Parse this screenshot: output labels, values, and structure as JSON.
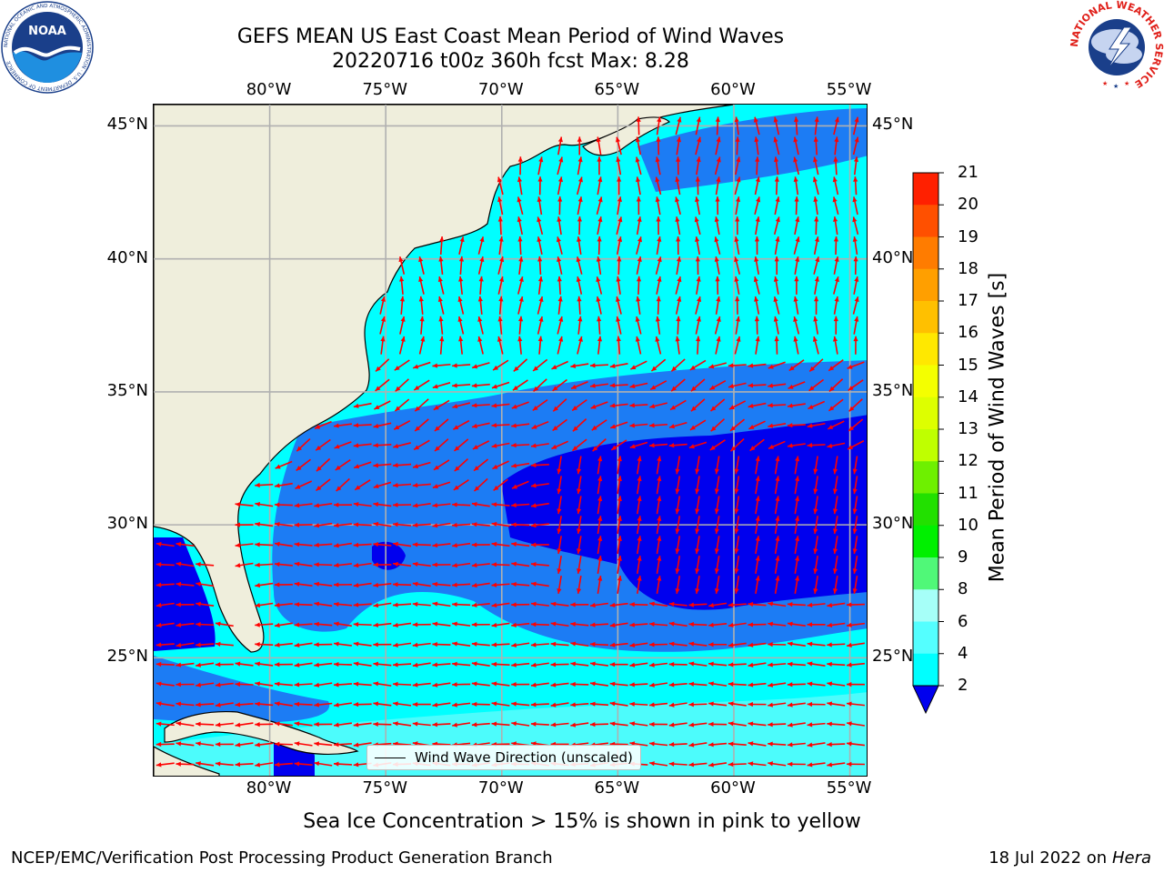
{
  "title": {
    "line1": "GEFS MEAN US East Coast Mean Period of Wind Waves",
    "line2": "20220716 t00z 360h fcst   Max: 8.28"
  },
  "map": {
    "extent": {
      "lon_min": -85,
      "lon_max": -54.2,
      "lat_min": 20.5,
      "lat_max": 45.8
    },
    "land_color": "#efeedc",
    "coastline_color": "#000000",
    "grid_color": "#b0b0b0",
    "arrow_color": "#ff0000",
    "lon_ticks": [
      {
        "value": -80,
        "label": "80°W"
      },
      {
        "value": -75,
        "label": "75°W"
      },
      {
        "value": -70,
        "label": "70°W"
      },
      {
        "value": -65,
        "label": "65°W"
      },
      {
        "value": -60,
        "label": "60°W"
      },
      {
        "value": -55,
        "label": "55°W"
      }
    ],
    "lat_ticks": [
      {
        "value": 45,
        "label": "45°N"
      },
      {
        "value": 40,
        "label": "40°N"
      },
      {
        "value": 35,
        "label": "35°N"
      },
      {
        "value": 30,
        "label": "30°N"
      },
      {
        "value": 25,
        "label": "25°N"
      }
    ],
    "legend": "Wind Wave Direction (unscaled)"
  },
  "colorbar": {
    "label": "Mean Period of Wind Waves [s]",
    "under_color": "#0000ee",
    "levels": [
      "21",
      "20",
      "19",
      "18",
      "17",
      "16",
      "15",
      "14",
      "13",
      "12",
      "11",
      "10",
      "9",
      "8",
      "6",
      "4",
      "2"
    ],
    "colors": [
      "#ff0000",
      "#ff2000",
      "#ff5000",
      "#ff7c00",
      "#ff9f00",
      "#ffc000",
      "#ffe800",
      "#f4ff00",
      "#ddff00",
      "#bfff00",
      "#6ef000",
      "#22e000",
      "#00f000",
      "#50f878",
      "#a6fff8",
      "#54ffff",
      "#00ffff",
      "#0080ff"
    ]
  },
  "fields": {
    "lt2_color": "#0000ee",
    "2to4_color": "#1c7cf4",
    "4to6_color": "#00ffff",
    "6to8_color": "#4cfcfc"
  },
  "subtitle": "Sea Ice Concentration > 15% is shown in pink to yellow",
  "footer_left": "NCEP/EMC/Verification Post Processing Product Generation Branch",
  "footer_right_date": "18 Jul 2022 on ",
  "footer_right_host": "Hera",
  "logos": {
    "noaa": {
      "text": "NOAA",
      "ring": "NATIONAL OCEANIC AND ATMOSPHERIC ADMINISTRATION · U.S. DEPARTMENT OF COMMERCE"
    },
    "nws": {
      "ring": "NATIONAL WEATHER SERVICE"
    }
  }
}
